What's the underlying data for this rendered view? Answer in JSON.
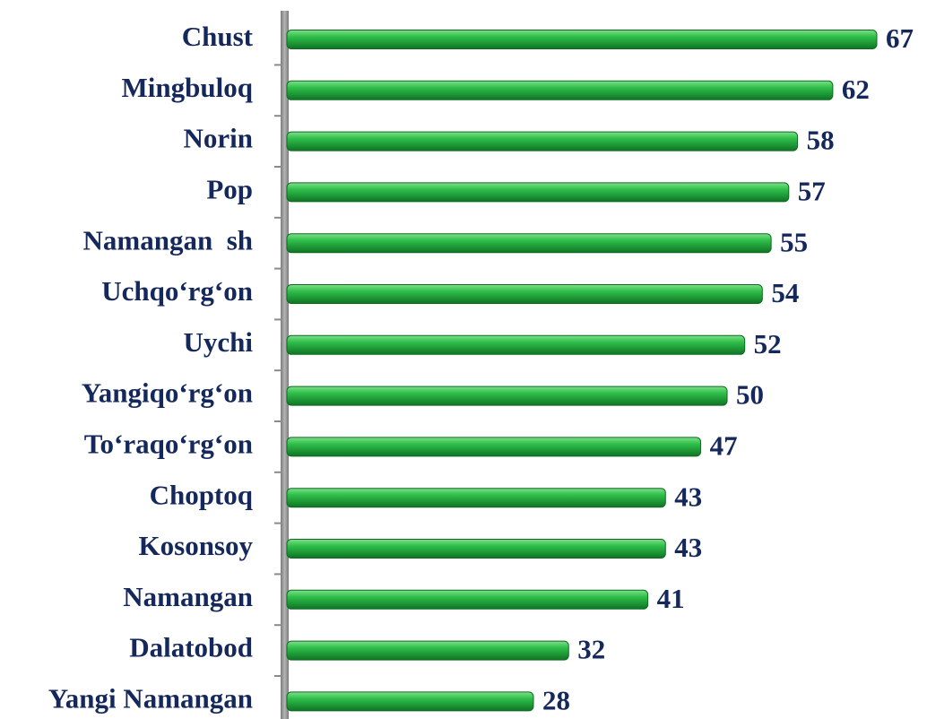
{
  "chart_data": {
    "type": "bar",
    "orientation": "horizontal",
    "categories": [
      "Chust",
      "Mingbuloq",
      "Norin",
      "Pop",
      "Namangan  sh",
      "Uchqo‘rg‘on",
      "Uychi",
      "Yangiqo‘rg‘on",
      "To‘raqo‘rg‘on",
      "Choptoq",
      "Kosonsoy",
      "Namangan",
      "Dalatobod",
      "Yangi Namangan"
    ],
    "values": [
      67,
      62,
      58,
      57,
      55,
      54,
      52,
      50,
      47,
      43,
      43,
      41,
      32,
      28
    ],
    "color": "#22a83a"
  }
}
